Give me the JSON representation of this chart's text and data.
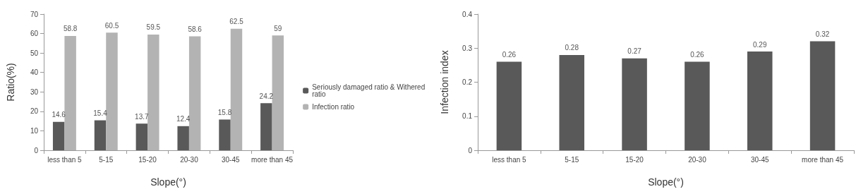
{
  "chart_data": [
    {
      "type": "bar",
      "xlabel": "Slope(°)",
      "ylabel": "Ratio(%)",
      "categories": [
        "less than 5",
        "5-15",
        "15-20",
        "20-30",
        "30-45",
        "more than 45"
      ],
      "series": [
        {
          "name": "Seriously damaged ratio & Withered ratio",
          "color": "#595959",
          "values": [
            14.6,
            15.4,
            13.7,
            12.4,
            15.8,
            24.2
          ]
        },
        {
          "name": "Infection ratio",
          "color": "#b3b3b3",
          "values": [
            58.8,
            60.5,
            59.5,
            58.6,
            62.5,
            59
          ]
        }
      ],
      "ylim": [
        0,
        70
      ],
      "yticks": [
        0,
        10,
        20,
        30,
        40,
        50,
        60,
        70
      ],
      "data_labels": true,
      "legend": "right",
      "grid": false
    },
    {
      "type": "bar",
      "xlabel": "Slope(°)",
      "ylabel": "Infection index",
      "categories": [
        "less than 5",
        "5-15",
        "15-20",
        "20-30",
        "30-45",
        "more than 45"
      ],
      "series": [
        {
          "color": "#595959",
          "values": [
            0.26,
            0.28,
            0.27,
            0.26,
            0.29,
            0.32
          ]
        }
      ],
      "ylim": [
        0,
        0.4
      ],
      "yticks": [
        0,
        0.1,
        0.2,
        0.3,
        0.4
      ],
      "data_labels": true,
      "legend": false,
      "grid": false
    }
  ]
}
